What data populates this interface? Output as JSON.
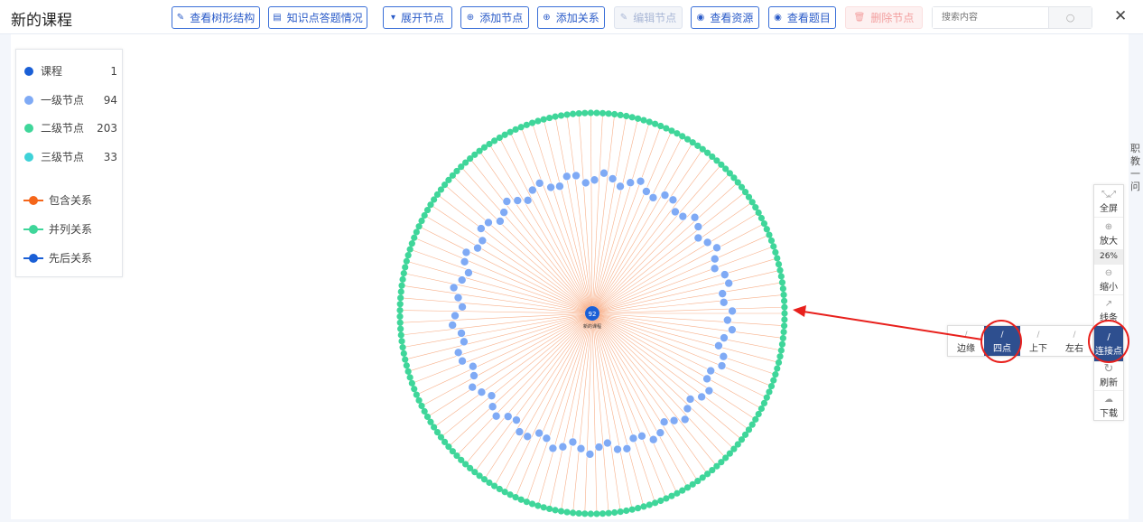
{
  "header": {
    "title": "新的课程",
    "close_icon": "close-icon",
    "search": {
      "placeholder": "搜索内容",
      "value": ""
    }
  },
  "toolbar": [
    {
      "label": "查看树形结构",
      "icon": "edit-icon",
      "state": "normal"
    },
    {
      "label": "知识点答题情况",
      "icon": "document-icon",
      "state": "normal"
    },
    {
      "label": "展开节点",
      "icon": "caret-down-icon",
      "state": "normal"
    },
    {
      "label": "添加节点",
      "icon": "plus-circle-icon",
      "state": "normal"
    },
    {
      "label": "添加关系",
      "icon": "plus-circle-icon",
      "state": "normal"
    },
    {
      "label": "编辑节点",
      "icon": "edit-icon",
      "state": "disabled"
    },
    {
      "label": "查看资源",
      "icon": "eye-icon",
      "state": "normal"
    },
    {
      "label": "查看题目",
      "icon": "eye-icon",
      "state": "normal"
    },
    {
      "label": "删除节点",
      "icon": "trash-icon",
      "state": "disabled-danger"
    }
  ],
  "legend": {
    "nodes": [
      {
        "label": "课程",
        "count": "1",
        "color": "#1a5fd6"
      },
      {
        "label": "一级节点",
        "count": "94",
        "color": "#7faaf5"
      },
      {
        "label": "二级节点",
        "count": "203",
        "color": "#3fd69a"
      },
      {
        "label": "三级节点",
        "count": "33",
        "color": "#3ed2d8"
      }
    ],
    "relations": [
      {
        "label": "包含关系",
        "color": "#f5661a"
      },
      {
        "label": "并列关系",
        "color": "#3fd69a"
      },
      {
        "label": "先后关系",
        "color": "#1a5fd6"
      }
    ]
  },
  "graph": {
    "center_label": "92",
    "center_name": "新的课程",
    "edge_color": "#f8b08a"
  },
  "tools": {
    "items": [
      {
        "label": "全屏",
        "icon": "fullscreen-icon"
      },
      {
        "label": "放大",
        "icon": "zoom-in-icon"
      },
      {
        "label": "缩小",
        "icon": "zoom-out-icon"
      },
      {
        "label": "线条",
        "icon": "line-chart-icon"
      },
      {
        "label": "连接点",
        "icon": "pen-icon",
        "active": true
      },
      {
        "label": "刷新",
        "icon": "refresh-icon"
      },
      {
        "label": "下载",
        "icon": "cloud-download-icon"
      }
    ],
    "zoom": "26%"
  },
  "anchor_popup": [
    {
      "label": "边缘",
      "active": false
    },
    {
      "label": "四点",
      "active": true
    },
    {
      "label": "上下",
      "active": false
    },
    {
      "label": "左右",
      "active": false
    }
  ],
  "side_tab": "职教一问"
}
